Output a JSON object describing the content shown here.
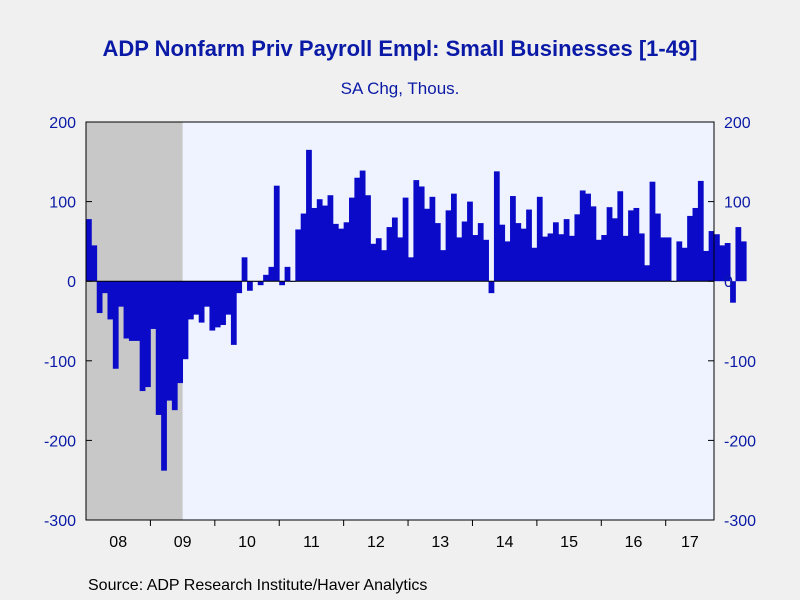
{
  "title": "ADP Nonfarm Priv Payroll Empl: Small Businesses [1-49]",
  "subtitle": "SA Chg, Thous.",
  "source": "Source:  ADP Research Institute/Haver Analytics",
  "colors": {
    "bar": "#0a0ac8",
    "plot_bg": "#eef3ff",
    "recession": "#c8c8c8",
    "text": "#0a1aa6"
  },
  "chart_data": {
    "type": "bar",
    "title": "ADP Nonfarm Priv Payroll Empl: Small Businesses [1-49]",
    "subtitle": "SA Chg, Thous.",
    "ylim": [
      -300,
      200
    ],
    "yticks": [
      200,
      100,
      0,
      -100,
      -200,
      -300
    ],
    "ytick_labels": [
      "200",
      "100",
      "0",
      "-100",
      "-200",
      "-300"
    ],
    "x_year_labels": [
      "08",
      "09",
      "10",
      "11",
      "12",
      "13",
      "14",
      "15",
      "16",
      "17"
    ],
    "x_start": "2008-01",
    "x_end": "2017-09",
    "recession_shading": {
      "start": "2008-01",
      "end": "2009-06"
    },
    "grid": false,
    "series": [
      {
        "values": [
          78,
          45,
          -40,
          -15,
          -48,
          -110,
          -32,
          -72,
          -75,
          -75,
          -138,
          -133,
          -60,
          -168,
          -238,
          -150,
          -162,
          -128,
          -98,
          -48,
          -42,
          -52,
          -32,
          -62,
          -58,
          -55,
          -42,
          -80,
          -15,
          30,
          -12,
          0,
          -5,
          8,
          18,
          120,
          -5,
          18,
          0,
          65,
          85,
          165,
          92,
          103,
          95,
          108,
          72,
          66,
          74,
          105,
          130,
          139,
          108,
          47,
          54,
          39,
          68,
          80,
          55,
          105,
          30,
          127,
          119,
          91,
          106,
          73,
          39,
          89,
          110,
          55,
          75,
          100,
          58,
          73,
          52,
          -15,
          138,
          71,
          50,
          107,
          73,
          66,
          90,
          42,
          106,
          56,
          60,
          74,
          59,
          78,
          57,
          84,
          114,
          110,
          94,
          52,
          58,
          93,
          79,
          113,
          57,
          89,
          92,
          60,
          20,
          125,
          85,
          55,
          55,
          0,
          50,
          42,
          82,
          92,
          126,
          38,
          63,
          59,
          45,
          48,
          -27,
          68,
          50
        ]
      }
    ]
  }
}
